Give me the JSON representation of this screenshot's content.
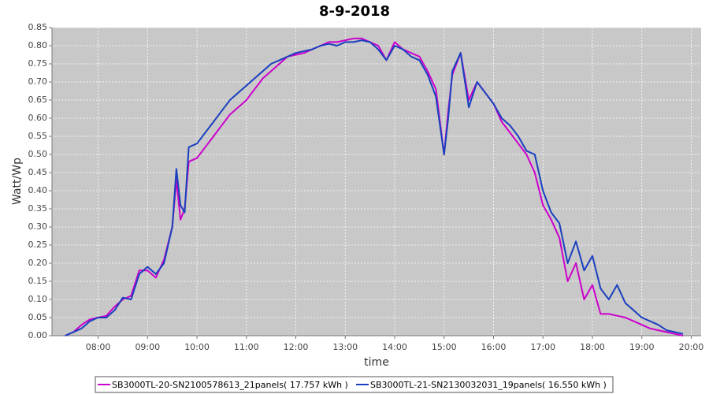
{
  "chart_data": {
    "type": "line",
    "title": "8-9-2018",
    "x_label": "time",
    "y_label": "Watt/Wp",
    "grid": true,
    "legend": "bottom",
    "xlim": [
      "07:04",
      "20:12"
    ],
    "xticks": [
      "08:00",
      "09:00",
      "10:00",
      "11:00",
      "12:00",
      "13:00",
      "14:00",
      "15:00",
      "16:00",
      "17:00",
      "18:00",
      "19:00",
      "20:00"
    ],
    "ylim": [
      0,
      0.85
    ],
    "yticks": [
      {
        "value": 0,
        "label": "0.00"
      },
      {
        "value": 0.05,
        "label": "0.05"
      },
      {
        "value": 0.1,
        "label": "0.10"
      },
      {
        "value": 0.15,
        "label": "0.15"
      },
      {
        "value": 0.2,
        "label": "0.20"
      },
      {
        "value": 0.25,
        "label": "0.25"
      },
      {
        "value": 0.3,
        "label": "0.30"
      },
      {
        "value": 0.35,
        "label": "0.35"
      },
      {
        "value": 0.4,
        "label": "0.40"
      },
      {
        "value": 0.45,
        "label": "0.45"
      },
      {
        "value": 0.5,
        "label": "0.50"
      },
      {
        "value": 0.55,
        "label": "0.55"
      },
      {
        "value": 0.6,
        "label": "0.60"
      },
      {
        "value": 0.65,
        "label": "0.65"
      },
      {
        "value": 0.7,
        "label": "0.70"
      },
      {
        "value": 0.75,
        "label": "0.75"
      },
      {
        "value": 0.8,
        "label": "0.80"
      },
      {
        "value": 0.85,
        "label": "0.85"
      }
    ],
    "x": [
      "07:20",
      "07:30",
      "07:40",
      "07:50",
      "08:00",
      "08:10",
      "08:20",
      "08:30",
      "08:40",
      "08:50",
      "09:00",
      "09:10",
      "09:20",
      "09:30",
      "09:35",
      "09:40",
      "09:45",
      "09:50",
      "10:00",
      "10:10",
      "10:20",
      "10:30",
      "10:40",
      "10:50",
      "11:00",
      "11:10",
      "11:20",
      "11:30",
      "11:40",
      "11:50",
      "12:00",
      "12:10",
      "12:20",
      "12:30",
      "12:40",
      "12:50",
      "13:00",
      "13:10",
      "13:20",
      "13:30",
      "13:40",
      "13:50",
      "14:00",
      "14:10",
      "14:20",
      "14:30",
      "14:40",
      "14:50",
      "15:00",
      "15:05",
      "15:10",
      "15:20",
      "15:30",
      "15:40",
      "15:50",
      "16:00",
      "16:10",
      "16:20",
      "16:30",
      "16:40",
      "16:50",
      "17:00",
      "17:10",
      "17:20",
      "17:30",
      "17:40",
      "17:50",
      "18:00",
      "18:10",
      "18:20",
      "18:30",
      "18:40",
      "18:50",
      "19:00",
      "19:10",
      "19:20",
      "19:30",
      "19:40",
      "19:50"
    ],
    "series": [
      {
        "name": "SB3000TL-20-SN2100578613_21panels( 17.757 kWh )",
        "color": "#cc00cc",
        "values": [
          0.0,
          0.01,
          0.03,
          0.045,
          0.05,
          0.055,
          0.08,
          0.1,
          0.11,
          0.18,
          0.18,
          0.16,
          0.21,
          0.3,
          0.43,
          0.32,
          0.35,
          0.48,
          0.49,
          0.52,
          0.55,
          0.58,
          0.61,
          0.63,
          0.65,
          0.68,
          0.71,
          0.73,
          0.75,
          0.77,
          0.775,
          0.78,
          0.79,
          0.8,
          0.81,
          0.81,
          0.815,
          0.82,
          0.82,
          0.81,
          0.8,
          0.76,
          0.81,
          0.79,
          0.78,
          0.77,
          0.73,
          0.68,
          0.5,
          0.62,
          0.72,
          0.78,
          0.65,
          0.7,
          0.67,
          0.64,
          0.59,
          0.56,
          0.53,
          0.5,
          0.45,
          0.36,
          0.32,
          0.27,
          0.15,
          0.2,
          0.1,
          0.14,
          0.06,
          0.06,
          0.055,
          0.05,
          0.04,
          0.03,
          0.02,
          0.015,
          0.01,
          0.005,
          0.0
        ]
      },
      {
        "name": "SB3000TL-21-SN2130032031_19panels( 16.550 kWh )",
        "color": "#1a3fbf",
        "values": [
          0.0,
          0.01,
          0.02,
          0.04,
          0.05,
          0.05,
          0.07,
          0.105,
          0.1,
          0.17,
          0.19,
          0.17,
          0.2,
          0.3,
          0.46,
          0.36,
          0.34,
          0.52,
          0.53,
          0.56,
          0.59,
          0.62,
          0.65,
          0.67,
          0.69,
          0.71,
          0.73,
          0.75,
          0.76,
          0.77,
          0.78,
          0.785,
          0.79,
          0.8,
          0.805,
          0.8,
          0.81,
          0.81,
          0.815,
          0.81,
          0.79,
          0.76,
          0.8,
          0.79,
          0.77,
          0.76,
          0.72,
          0.66,
          0.5,
          0.6,
          0.73,
          0.78,
          0.63,
          0.7,
          0.67,
          0.64,
          0.6,
          0.58,
          0.55,
          0.51,
          0.5,
          0.4,
          0.34,
          0.31,
          0.2,
          0.26,
          0.18,
          0.22,
          0.13,
          0.1,
          0.14,
          0.09,
          0.07,
          0.05,
          0.04,
          0.03,
          0.015,
          0.01,
          0.005
        ]
      }
    ]
  }
}
